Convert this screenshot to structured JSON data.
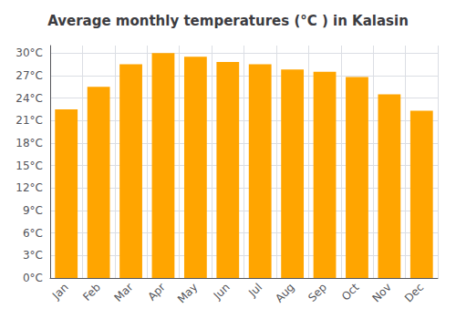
{
  "chart_data": {
    "type": "bar",
    "title": "Average monthly temperatures (°C ) in Kalasin",
    "categories": [
      "Jan",
      "Feb",
      "Mar",
      "Apr",
      "May",
      "Jun",
      "Jul",
      "Aug",
      "Sep",
      "Oct",
      "Nov",
      "Dec"
    ],
    "values": [
      22.5,
      25.5,
      28.5,
      30.0,
      29.5,
      28.8,
      28.5,
      27.8,
      27.5,
      26.8,
      24.5,
      22.3
    ],
    "color": "#FFA500",
    "ylim": [
      0,
      31
    ],
    "yticks": [
      {
        "value": 0,
        "label": "0°C"
      },
      {
        "value": 3,
        "label": "3°C"
      },
      {
        "value": 6,
        "label": "6°C"
      },
      {
        "value": 9,
        "label": "9°C"
      },
      {
        "value": 12,
        "label": "12°C"
      },
      {
        "value": 15,
        "label": "15°C"
      },
      {
        "value": 18,
        "label": "18°C"
      },
      {
        "value": 21,
        "label": "21°C"
      },
      {
        "value": 24,
        "label": "24°C"
      },
      {
        "value": 27,
        "label": "27°C"
      },
      {
        "value": 30,
        "label": "30°C"
      }
    ],
    "grid": true
  }
}
